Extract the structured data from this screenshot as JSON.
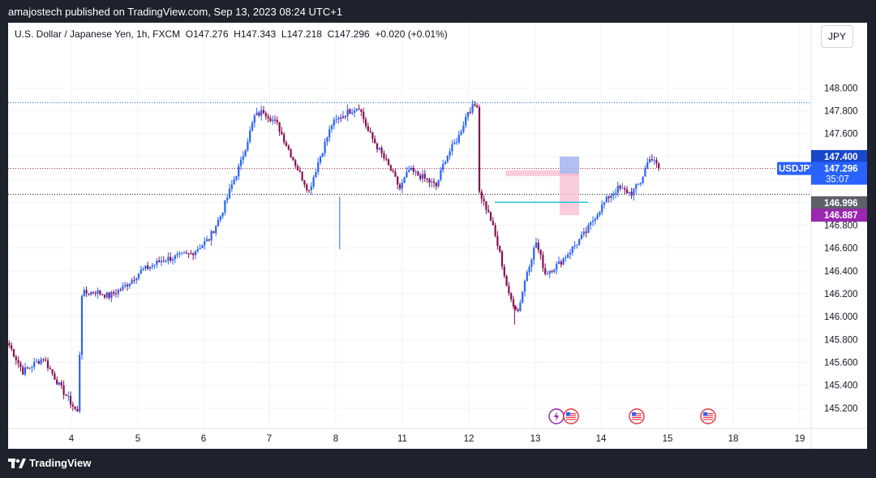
{
  "header": {
    "publisher_text": "amajostech published on TradingView.com, Sep 13, 2023 08:24 UTC+1"
  },
  "legend": {
    "symbol_desc": "U.S. Dollar / Japanese Yen, 1h, FXCM",
    "open": "O147.276",
    "high": "H147.343",
    "low": "L147.218",
    "close": "C147.296",
    "change": "+0.020 (+0.01%)"
  },
  "currency_button": "JPY",
  "footer": {
    "brand": "TradingView"
  },
  "colors": {
    "up": "#2962ff",
    "down": "#880e4f",
    "current_price": "#2962ff",
    "label_gray": "#5d606b",
    "label_purple": "#9c27b0",
    "level_blue": "#2962ff",
    "level_dark": "#131722",
    "level_red": "#b2163b",
    "support_line": "#26c6da",
    "risk_zone": "#f8bbd0",
    "reward_zone": "#a8b8ef"
  },
  "chart_data": {
    "type": "candlestick",
    "symbol": "USDJPY",
    "timeframe": "1h",
    "ylim": [
      145.1,
      148.18
    ],
    "y_ticks": [
      "148.000",
      "147.800",
      "147.600",
      "147.400",
      "147.200",
      "147.000",
      "146.800",
      "146.600",
      "146.400",
      "146.200",
      "146.000",
      "145.800",
      "145.600",
      "145.400",
      "145.200"
    ],
    "x_ticks": [
      "4",
      "5",
      "6",
      "7",
      "8",
      "11",
      "12",
      "13",
      "14",
      "15",
      "18",
      "19"
    ],
    "price_labels": [
      {
        "id": "target",
        "text": "147.400",
        "value": 147.4,
        "color_key": "level_blue"
      },
      {
        "id": "symbol",
        "text": "USDJPY",
        "value": 147.296,
        "color_key": "current_price"
      },
      {
        "id": "last",
        "text": "147.296",
        "value": 147.296,
        "color_key": "current_price",
        "countdown": "35:07"
      },
      {
        "id": "prev",
        "text": "146.996",
        "value": 146.996,
        "color_key": "label_gray"
      },
      {
        "id": "stop",
        "text": "146.887",
        "value": 146.887,
        "color_key": "label_purple"
      }
    ],
    "horizontal_levels": [
      {
        "value": 147.87,
        "color_key": "level_blue",
        "style": "dotted"
      },
      {
        "value": 147.296,
        "color_key": "level_red",
        "style": "dotted"
      },
      {
        "value": 147.07,
        "color_key": "level_dark",
        "style": "dotted"
      }
    ],
    "support_level": {
      "value": 147.0
    },
    "position_tool": {
      "entry": 147.25,
      "target": 147.4,
      "stop": 146.887
    },
    "events": [
      {
        "day": "13",
        "kind": "earnings-icon"
      },
      {
        "day": "13",
        "kind": "us-flag-icon"
      },
      {
        "day": "14",
        "kind": "us-flag-icon"
      },
      {
        "day": "15",
        "kind": "us-flag-icon"
      }
    ],
    "anchors": [
      [
        0,
        145.75
      ],
      [
        6,
        145.52
      ],
      [
        15,
        145.64
      ],
      [
        22,
        145.4
      ],
      [
        30,
        145.16
      ],
      [
        32,
        146.2
      ],
      [
        38,
        146.22
      ],
      [
        44,
        146.18
      ],
      [
        50,
        146.25
      ],
      [
        58,
        146.4
      ],
      [
        68,
        146.5
      ],
      [
        80,
        146.55
      ],
      [
        88,
        146.68
      ],
      [
        93,
        146.88
      ],
      [
        98,
        147.15
      ],
      [
        102,
        147.35
      ],
      [
        108,
        147.75
      ],
      [
        112,
        147.8
      ],
      [
        118,
        147.68
      ],
      [
        124,
        147.42
      ],
      [
        128,
        147.25
      ],
      [
        132,
        147.1
      ],
      [
        136,
        147.35
      ],
      [
        142,
        147.68
      ],
      [
        148,
        147.78
      ],
      [
        154,
        147.84
      ],
      [
        158,
        147.62
      ],
      [
        164,
        147.42
      ],
      [
        168,
        147.28
      ],
      [
        172,
        147.12
      ],
      [
        176,
        147.28
      ],
      [
        182,
        147.22
      ],
      [
        188,
        147.14
      ],
      [
        192,
        147.38
      ],
      [
        198,
        147.58
      ],
      [
        202,
        147.8
      ],
      [
        206,
        147.86
      ],
      [
        207,
        147.1
      ],
      [
        212,
        146.85
      ],
      [
        216,
        146.55
      ],
      [
        220,
        146.18
      ],
      [
        224,
        146.05
      ],
      [
        228,
        146.4
      ],
      [
        232,
        146.65
      ],
      [
        236,
        146.38
      ],
      [
        242,
        146.46
      ],
      [
        248,
        146.6
      ],
      [
        254,
        146.74
      ],
      [
        258,
        146.88
      ],
      [
        264,
        147.05
      ],
      [
        268,
        147.12
      ],
      [
        274,
        147.08
      ],
      [
        278,
        147.18
      ],
      [
        282,
        147.4
      ],
      [
        286,
        147.3
      ]
    ]
  }
}
